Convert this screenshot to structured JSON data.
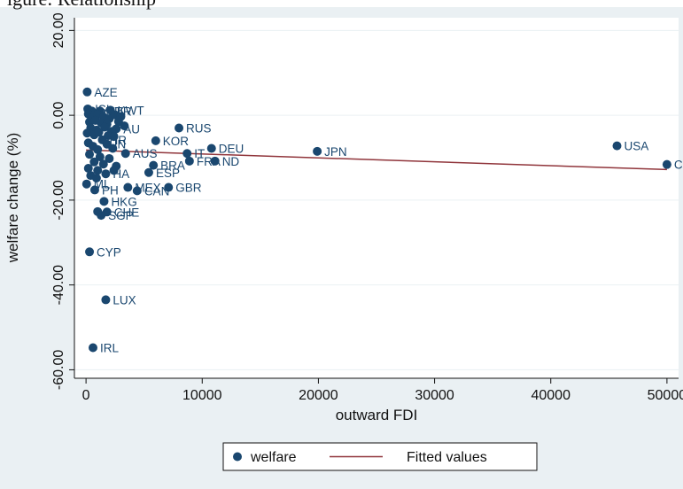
{
  "header": {
    "text": "igure: Relationship"
  },
  "chart_data": {
    "type": "scatter",
    "xlabel": "outward FDI",
    "ylabel": "welfare change (%)",
    "xlim": [
      -1000,
      51000
    ],
    "ylim": [
      -62,
      23
    ],
    "xticks": [
      {
        "value": 0,
        "label": "0"
      },
      {
        "value": 10000,
        "label": "10000"
      },
      {
        "value": 20000,
        "label": "20000"
      },
      {
        "value": 30000,
        "label": "30000"
      },
      {
        "value": 40000,
        "label": "40000"
      },
      {
        "value": 50000,
        "label": "50000"
      }
    ],
    "yticks": [
      {
        "value": 20,
        "label": "20.00"
      },
      {
        "value": 0,
        "label": "0.00"
      },
      {
        "value": -20,
        "label": "-20.00"
      },
      {
        "value": -40,
        "label": "-40.00"
      },
      {
        "value": -60,
        "label": "-60.00"
      }
    ],
    "grid": "horizontal",
    "colors": {
      "marker": "#1a476f",
      "fit": "#90353b",
      "plot_bg": "#ffffff",
      "outer_bg": "#eaf0f3",
      "grid": "#eaf0f3"
    },
    "series": [
      {
        "name": "welfare",
        "points": [
          {
            "x": 100,
            "y": 5.5,
            "label": "AZE"
          },
          {
            "x": 150,
            "y": 1.5,
            "label": "ISL"
          },
          {
            "x": 500,
            "y": 1.0,
            "label": "MLT"
          },
          {
            "x": 1200,
            "y": 1.0,
            "label": "TUR"
          },
          {
            "x": 2100,
            "y": 1.2,
            "label": "KWT"
          },
          {
            "x": 200,
            "y": 0.3
          },
          {
            "x": 600,
            "y": -0.5
          },
          {
            "x": 1000,
            "y": 0.2
          },
          {
            "x": 1500,
            "y": -0.4
          },
          {
            "x": 2000,
            "y": -0.8
          },
          {
            "x": 2500,
            "y": 0.1
          },
          {
            "x": 3000,
            "y": -0.3
          },
          {
            "x": 300,
            "y": -1.6
          },
          {
            "x": 800,
            "y": -1.2
          },
          {
            "x": 1300,
            "y": -1.8
          },
          {
            "x": 1800,
            "y": -2.1
          },
          {
            "x": 2800,
            "y": -1.5
          },
          {
            "x": 2600,
            "y": -3.2,
            "label": "AU"
          },
          {
            "x": 400,
            "y": -3.0
          },
          {
            "x": 900,
            "y": -3.5
          },
          {
            "x": 1600,
            "y": -2.8
          },
          {
            "x": 2200,
            "y": -3.8
          },
          {
            "x": 3300,
            "y": -2.5
          },
          {
            "x": 100,
            "y": -4.2
          },
          {
            "x": 700,
            "y": -4.6
          },
          {
            "x": 1100,
            "y": -4.0
          },
          {
            "x": 1900,
            "y": -4.8
          },
          {
            "x": 2400,
            "y": -5.0
          },
          {
            "x": 200,
            "y": -6.5
          },
          {
            "x": 1400,
            "y": -5.8,
            "label": "HR"
          },
          {
            "x": 1800,
            "y": -6.8,
            "label": "IN"
          },
          {
            "x": 600,
            "y": -7.3
          },
          {
            "x": 1000,
            "y": -8.1
          },
          {
            "x": 2300,
            "y": -7.8
          },
          {
            "x": 3400,
            "y": -9.0,
            "label": "AUS"
          },
          {
            "x": 300,
            "y": -9.2
          },
          {
            "x": 1200,
            "y": -9.8
          },
          {
            "x": 2000,
            "y": -10.2
          },
          {
            "x": 700,
            "y": -11.0
          },
          {
            "x": 1500,
            "y": -11.5
          },
          {
            "x": 2600,
            "y": -12.0
          },
          {
            "x": 200,
            "y": -12.5
          },
          {
            "x": 1000,
            "y": -13.0
          },
          {
            "x": 1700,
            "y": -13.8,
            "label": "HA"
          },
          {
            "x": 2400,
            "y": -13.0
          },
          {
            "x": 400,
            "y": -14.2
          },
          {
            "x": 900,
            "y": -14.8
          },
          {
            "x": 6000,
            "y": -6.0,
            "label": "KOR"
          },
          {
            "x": 8000,
            "y": -3.0,
            "label": "RUS"
          },
          {
            "x": 8700,
            "y": -9.0,
            "label": "IT"
          },
          {
            "x": 10800,
            "y": -7.8,
            "label": "DEU"
          },
          {
            "x": 5800,
            "y": -11.8,
            "label": "BRA"
          },
          {
            "x": 5400,
            "y": -13.5,
            "label": "ESP"
          },
          {
            "x": 8900,
            "y": -10.8,
            "label": "FRA"
          },
          {
            "x": 11100,
            "y": -10.8,
            "label": "ND"
          },
          {
            "x": 19900,
            "y": -8.5,
            "label": "JPN"
          },
          {
            "x": 45700,
            "y": -7.2,
            "label": "USA"
          },
          {
            "x": 50000,
            "y": -11.6,
            "label": "CHN"
          },
          {
            "x": 50,
            "y": -16.2,
            "label": "ML"
          },
          {
            "x": 750,
            "y": -17.6,
            "label": "PH"
          },
          {
            "x": 3600,
            "y": -17.0,
            "label": "MEX"
          },
          {
            "x": 4400,
            "y": -17.8,
            "label": "CAN"
          },
          {
            "x": 7100,
            "y": -17.0,
            "label": "GBR"
          },
          {
            "x": 1550,
            "y": -20.3,
            "label": "HKG"
          },
          {
            "x": 1000,
            "y": -22.7
          },
          {
            "x": 1800,
            "y": -22.8,
            "label": "CHE"
          },
          {
            "x": 1300,
            "y": -23.6,
            "label": "SGP"
          },
          {
            "x": 300,
            "y": -32.2,
            "label": "CYP"
          },
          {
            "x": 1700,
            "y": -43.5,
            "label": "LUX"
          },
          {
            "x": 600,
            "y": -54.8,
            "label": "IRL"
          }
        ]
      }
    ],
    "fit": {
      "name": "Fitted values",
      "x0": 0,
      "y0": -8.2,
      "x1": 50000,
      "y1": -12.8
    },
    "legend": {
      "position": "bottom",
      "items": [
        "welfare",
        "Fitted values"
      ]
    }
  }
}
